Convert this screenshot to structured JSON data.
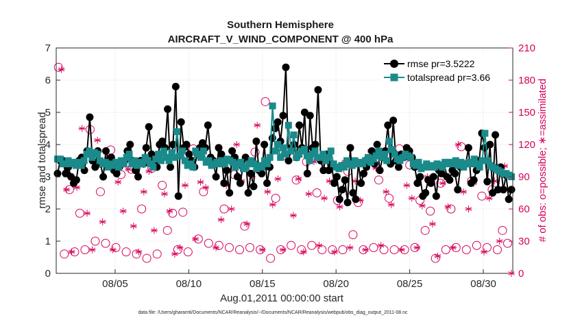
{
  "chart_data": {
    "type": "line",
    "title": [
      "Southern Hemisphere",
      "AIRCRAFT_V_WIND_COMPONENT @ 400 hPa"
    ],
    "xlabel": "Aug.01,2011 00:00:00 start",
    "ylabel_left": "rmse and totalspread",
    "ylabel_right": "# of obs: o=possible; ∗=assimilated",
    "xlim": [
      1.0,
      32.0
    ],
    "ylim_left": [
      0,
      7
    ],
    "ylim_right": [
      0,
      210
    ],
    "yticks_left": [
      0,
      1,
      2,
      3,
      4,
      5,
      6,
      7
    ],
    "yticks_right": [
      0,
      30,
      60,
      90,
      120,
      150,
      180,
      210
    ],
    "xticks": [
      {
        "x": 5,
        "label": "08/05"
      },
      {
        "x": 10,
        "label": "08/10"
      },
      {
        "x": 15,
        "label": "08/15"
      },
      {
        "x": 20,
        "label": "08/20"
      },
      {
        "x": 25,
        "label": "08/25"
      },
      {
        "x": 30,
        "label": "08/30"
      }
    ],
    "grid": true,
    "legend_position": "top-right",
    "colors": {
      "rmse": "#000000",
      "spread": "#1a8a8a",
      "obs": "#d6005a"
    },
    "series": [
      {
        "name": "rmse pr=3.5222",
        "axis": "left",
        "marker": "circle",
        "values": [
          3.1,
          3.5,
          3.5,
          3.1,
          3.3,
          3.0,
          2.8,
          2.9,
          3.5,
          3.6,
          3.2,
          3.8,
          4.85,
          3.5,
          3.3,
          3.8,
          3.4,
          3.0,
          3.8,
          3.5,
          3.6,
          3.2,
          3.1,
          3.3,
          3.4,
          3.5,
          3.8,
          4.0,
          3.5,
          3.2,
          3.0,
          3.5,
          3.4,
          3.9,
          4.55,
          3.7,
          3.5,
          3.3,
          4.0,
          4.1,
          3.9,
          5.1,
          3.3,
          4.0,
          5.8,
          2.4,
          4.7,
          3.9,
          4.0,
          3.7,
          3.5,
          3.3,
          3.7,
          3.9,
          4.05,
          3.9,
          4.6,
          3.6,
          3.5,
          3.0,
          3.9,
          3.7,
          2.8,
          3.2,
          2.5,
          3.8,
          3.6,
          3.0,
          2.8,
          3.3,
          3.6,
          2.5,
          3.1,
          2.7,
          4.1,
          3.2,
          3.1,
          4.0,
          2.8,
          3.3,
          4.2,
          4.5,
          4.7,
          4.1,
          4.9,
          6.4,
          3.5,
          3.9,
          4.0,
          3.6,
          4.6,
          3.9,
          5.0,
          3.1,
          4.9,
          3.9,
          4.0,
          5.7,
          3.5,
          3.2,
          3.7,
          3.2,
          3.4,
          2.8,
          3.0,
          2.3,
          2.6,
          2.9,
          2.2,
          3.9,
          2.5,
          2.3,
          3.4,
          2.8,
          3.1,
          3.3,
          3.5,
          3.8,
          3.4,
          4.0,
          3.2,
          3.6,
          3.8,
          4.6,
          3.4,
          4.75,
          3.5,
          3.3,
          3.7,
          3.6,
          3.9,
          3.8,
          3.6,
          3.3,
          2.8,
          3.0,
          2.4,
          2.5,
          2.9,
          2.8,
          3.0,
          2.4,
          3.2,
          3.1,
          3.4,
          3.0,
          2.9,
          3.2,
          3.1,
          2.6,
          3.3,
          3.4,
          3.4,
          3.9,
          2.8,
          2.9,
          3.2,
          3.5,
          4.35,
          3.9,
          2.85,
          4.0,
          2.5,
          4.3,
          2.6,
          3.3,
          2.6,
          3.05,
          2.3,
          2.6
        ]
      },
      {
        "name": "totalspread pr=3.66",
        "axis": "left",
        "marker": "square",
        "values": [
          3.55,
          3.55,
          3.4,
          3.4,
          3.5,
          3.4,
          3.45,
          3.35,
          3.45,
          3.35,
          3.5,
          3.7,
          3.8,
          3.6,
          3.75,
          3.7,
          3.5,
          3.4,
          3.45,
          3.3,
          3.4,
          3.35,
          3.45,
          3.3,
          3.5,
          3.4,
          3.6,
          3.7,
          3.4,
          3.5,
          3.35,
          3.45,
          3.4,
          3.6,
          3.5,
          3.4,
          3.3,
          3.55,
          3.7,
          3.5,
          3.8,
          3.6,
          3.5,
          3.75,
          3.6,
          4.4,
          3.65,
          3.8,
          3.5,
          3.35,
          3.4,
          3.3,
          3.8,
          3.7,
          3.6,
          3.8,
          3.45,
          3.5,
          3.35,
          3.4,
          3.45,
          3.4,
          3.5,
          3.4,
          3.55,
          3.5,
          3.45,
          3.3,
          3.4,
          3.45,
          3.25,
          3.3,
          3.4,
          3.5,
          3.4,
          3.25,
          3.35,
          3.3,
          3.5,
          3.4,
          3.6,
          5.2,
          3.8,
          4.0,
          3.6,
          3.9,
          3.7,
          4.6,
          3.8,
          4.3,
          3.6,
          3.7,
          3.8,
          3.85,
          3.65,
          3.5,
          3.7,
          3.8,
          3.6,
          3.6,
          3.7,
          3.5,
          3.6,
          3.8,
          3.4,
          3.3,
          3.25,
          3.35,
          3.3,
          3.5,
          3.4,
          3.35,
          3.5,
          3.4,
          3.45,
          3.4,
          3.5,
          3.6,
          3.45,
          3.55,
          3.65,
          3.8,
          3.6,
          3.7,
          3.5,
          4.1,
          3.85,
          3.7,
          3.55,
          3.5,
          3.6,
          3.7,
          3.65,
          3.6,
          3.4,
          3.35,
          3.45,
          3.25,
          3.3,
          3.4,
          3.3,
          3.35,
          3.3,
          3.4,
          3.35,
          3.3,
          3.45,
          3.4,
          3.45,
          3.4,
          3.5,
          3.35,
          3.45,
          3.3,
          3.4,
          3.45,
          3.4,
          3.55,
          3.4,
          3.3,
          3.5,
          4.35,
          3.5,
          3.35,
          3.3,
          3.25,
          3.2,
          3.15,
          3.1,
          3.1,
          3.05,
          3.0
        ]
      },
      {
        "name": "# of obs possible",
        "axis": "right",
        "marker": "open-circle",
        "x": [
          1.15,
          1.55,
          1.9,
          2.25,
          2.6,
          2.95,
          3.3,
          3.65,
          4.0,
          4.35,
          4.7,
          5.05,
          5.4,
          5.75,
          6.1,
          6.45,
          6.8,
          7.15,
          7.5,
          7.85,
          8.2,
          8.55,
          8.9,
          9.25,
          9.6,
          9.95,
          10.3,
          10.65,
          11.0,
          11.35,
          11.7,
          12.05,
          12.4,
          12.75,
          13.1,
          13.45,
          13.8,
          14.15,
          14.5,
          14.85,
          15.2,
          15.55,
          15.9,
          16.25,
          16.6,
          16.95,
          17.3,
          17.65,
          18.0,
          18.35,
          18.7,
          19.05,
          19.4,
          19.75,
          20.1,
          20.45,
          20.8,
          21.15,
          21.5,
          21.85,
          22.2,
          22.55,
          22.9,
          23.25,
          23.6,
          23.95,
          24.3,
          24.65,
          25.0,
          25.35,
          25.7,
          26.05,
          26.4,
          26.75,
          27.1,
          27.45,
          27.8,
          28.15,
          28.5,
          28.85,
          29.2,
          29.55,
          29.9,
          30.25,
          30.6,
          30.95,
          31.3,
          31.65
        ],
        "values": [
          192,
          18,
          78,
          20,
          56,
          22,
          134,
          30,
          76,
          28,
          115,
          24,
          92,
          20,
          97,
          18,
          60,
          14,
          98,
          18,
          82,
          40,
          56,
          22,
          57,
          20,
          116,
          32,
          76,
          28,
          102,
          26,
          60,
          24,
          92,
          22,
          44,
          24,
          113,
          22,
          160,
          14,
          70,
          22,
          110,
          26,
          87,
          22,
          104,
          26,
          75,
          22,
          102,
          22,
          68,
          22,
          95,
          36,
          66,
          22,
          107,
          24,
          87,
          22,
          70,
          22,
          116,
          22,
          101,
          24,
          68,
          40,
          58,
          14,
          84,
          22,
          60,
          24,
          118,
          22,
          86,
          26,
          72,
          24,
          78,
          22,
          40,
          28
        ]
      },
      {
        "name": "# of obs assimilated",
        "axis": "right",
        "marker": "asterisk",
        "x": [
          1.35,
          1.7,
          2.05,
          2.4,
          2.75,
          3.1,
          3.45,
          3.8,
          4.15,
          4.5,
          4.85,
          5.2,
          5.55,
          5.9,
          6.25,
          6.6,
          6.95,
          7.3,
          7.65,
          8.0,
          8.35,
          8.7,
          9.05,
          9.4,
          9.75,
          10.1,
          10.45,
          10.8,
          11.15,
          11.5,
          11.85,
          12.2,
          12.55,
          12.9,
          13.25,
          13.6,
          13.95,
          14.3,
          14.65,
          15.0,
          15.35,
          15.7,
          16.05,
          16.4,
          16.75,
          17.1,
          17.45,
          17.8,
          18.15,
          18.5,
          18.85,
          19.2,
          19.55,
          19.9,
          20.25,
          20.6,
          20.95,
          21.3,
          21.65,
          22.0,
          22.35,
          22.7,
          23.05,
          23.4,
          23.75,
          24.1,
          24.45,
          24.8,
          25.15,
          25.5,
          25.85,
          26.2,
          26.55,
          26.9,
          27.25,
          27.6,
          27.95,
          28.3,
          28.65,
          29.0,
          29.35,
          29.7,
          30.05,
          30.4,
          30.75,
          31.1,
          31.45,
          31.9
        ],
        "values": [
          190,
          78,
          20,
          80,
          135,
          56,
          22,
          124,
          48,
          108,
          22,
          85,
          58,
          97,
          44,
          20,
          76,
          95,
          40,
          110,
          74,
          58,
          18,
          24,
          82,
          102,
          32,
          85,
          80,
          104,
          24,
          50,
          82,
          60,
          120,
          86,
          46,
          90,
          138,
          22,
          76,
          64,
          88,
          22,
          112,
          54,
          88,
          20,
          74,
          104,
          26,
          70,
          86,
          20,
          62,
          104,
          24,
          86,
          68,
          22,
          114,
          98,
          26,
          76,
          64,
          112,
          22,
          82,
          70,
          24,
          63,
          90,
          46,
          16,
          84,
          62,
          24,
          120,
          76,
          60,
          84,
          102,
          20,
          70,
          86,
          30,
          100,
          0
        ]
      }
    ]
  },
  "footer": "data file: /Users/gharamti/Documents/NCAR/Reanalysis/~/Documents/NCAR/Reanalysis/webpub/obs_diag_output_2011-08.nc"
}
